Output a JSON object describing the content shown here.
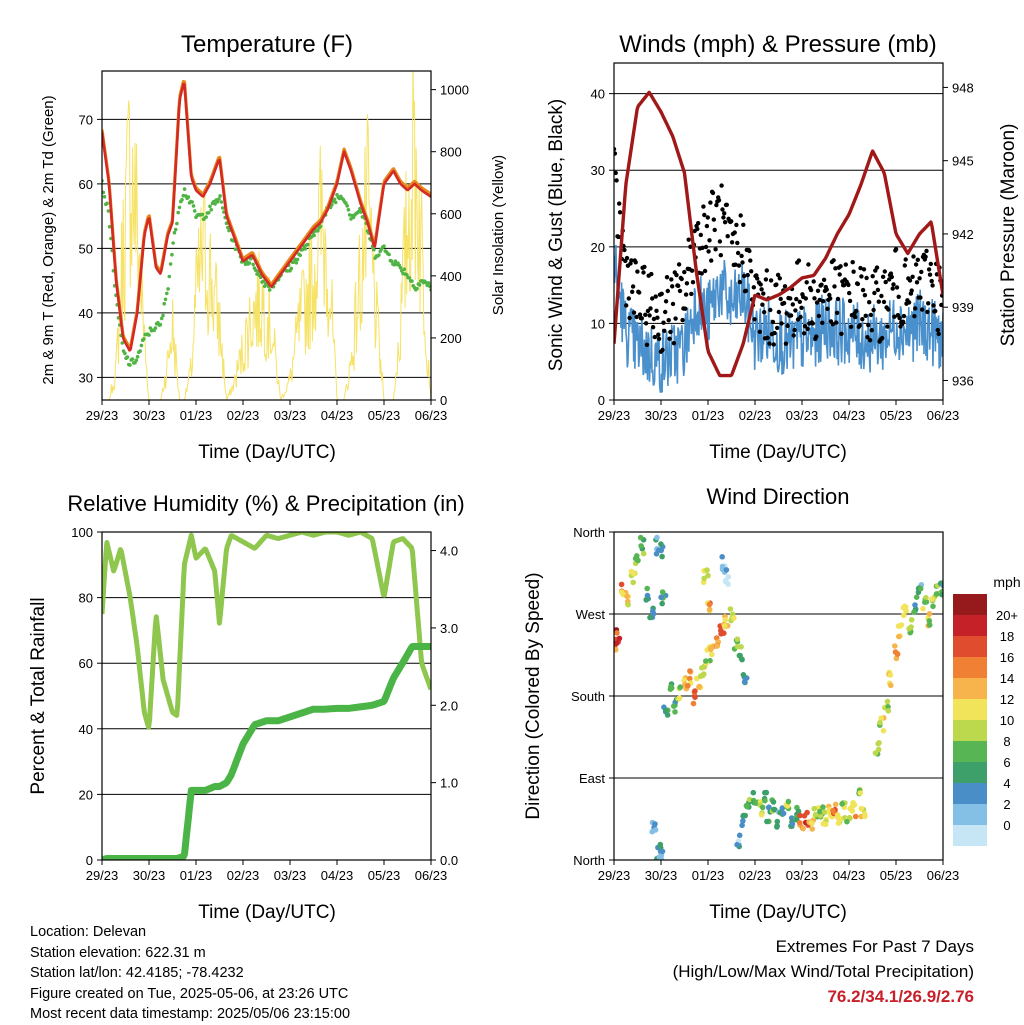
{
  "colors": {
    "temp2m": "#e8881c",
    "temp9m": "#d42a26",
    "dewpoint": "#4fb444",
    "solar": "#f6e264",
    "wind": "#4a90cc",
    "gust": "#000000",
    "pressure": "#a01818",
    "rh": "#8ec64e",
    "precip": "#4bb446",
    "extremes": "#c8202a"
  },
  "time_ticks": [
    "29/23",
    "30/23",
    "01/23",
    "02/23",
    "03/23",
    "04/23",
    "05/23",
    "06/23"
  ],
  "panels": {
    "temperature": {
      "title": "Temperature (F)",
      "xlabel": "Time (Day/UTC)",
      "ylabel_left": "2m & 9m T (Red, Orange) & 2m Td (Green)",
      "ylabel_right": "Solar Insolation (Yellow)",
      "left_ticks": [
        "30",
        "40",
        "50",
        "60",
        "70"
      ],
      "right_ticks": [
        "0",
        "200",
        "400",
        "600",
        "800",
        "1000"
      ]
    },
    "winds": {
      "title": "Winds (mph) & Pressure (mb)",
      "xlabel": "Time (Day/UTC)",
      "ylabel_left": "Sonic Wind & Gust (Blue, Black)",
      "ylabel_right": "Station Pressure (Maroon)",
      "left_ticks": [
        "0",
        "10",
        "20",
        "30",
        "40"
      ],
      "right_ticks": [
        "936",
        "939",
        "942",
        "945",
        "948"
      ]
    },
    "humidity": {
      "title": "Relative Humidity (%) & Precipitation (in)",
      "xlabel": "Time (Day/UTC)",
      "ylabel_left": "Percent & Total Rainfall",
      "left_ticks": [
        "0",
        "20",
        "40",
        "60",
        "80",
        "100"
      ],
      "right_ticks": [
        "0.0",
        "1.0",
        "2.0",
        "3.0",
        "4.0"
      ]
    },
    "direction": {
      "title": "Wind Direction",
      "xlabel": "Time (Day/UTC)",
      "ylabel_left": "Direction (Colored By Speed)",
      "dir_ticks": [
        "North",
        "East",
        "South",
        "West",
        "North"
      ],
      "colorbar_title": "mph",
      "colorbar_labels": [
        "0",
        "2",
        "4",
        "6",
        "8",
        "10",
        "12",
        "14",
        "16",
        "18",
        "20+"
      ],
      "colorbar_colors": [
        "#c6e6f6",
        "#84bfe6",
        "#4a8ec8",
        "#3d9f6a",
        "#58b554",
        "#bcd84c",
        "#f1e45a",
        "#f7b44c",
        "#f08034",
        "#e04c2e",
        "#c42228",
        "#961a1c"
      ]
    }
  },
  "info": {
    "location": "Location: Delevan",
    "elevation": "Station elevation: 622.31 m",
    "latlon": "Station lat/lon: 42.4185; -78.4232",
    "created": "Figure created on Tue, 2025-05-06, at 23:26 UTC",
    "latest": "Most recent data timestamp: 2025/05/06 23:15:00"
  },
  "extremes": {
    "line1": "Extremes For Past 7 Days",
    "line2": "(High/Low/Max Wind/Total Precipitation)",
    "values": "76.2/34.1/26.9/2.76"
  },
  "chart_data": [
    {
      "type": "line",
      "title": "Temperature (F)",
      "xlabel": "Time (Day/UTC)",
      "ylabel": "2m & 9m T (Red, Orange) & 2m Td (Green)",
      "y2label": "Solar Insolation (Yellow)",
      "x": [
        0,
        0.15,
        0.3,
        0.45,
        0.6,
        0.75,
        0.9,
        1.0,
        1.15,
        1.25,
        1.4,
        1.5,
        1.65,
        1.75,
        1.9,
        2.0,
        2.15,
        2.3,
        2.5,
        2.65,
        2.8,
        3.0,
        3.2,
        3.4,
        3.6,
        3.8,
        4.0,
        4.2,
        4.5,
        4.65,
        4.8,
        5.0,
        5.15,
        5.3,
        5.5,
        5.65,
        5.8,
        6.0,
        6.2,
        6.35,
        6.5,
        6.65,
        6.8,
        7.0
      ],
      "x_ticks": [
        "29/23",
        "30/23",
        "01/23",
        "02/23",
        "03/23",
        "04/23",
        "05/23",
        "06/23"
      ],
      "ylim": [
        26.5,
        77.5
      ],
      "y2lim": [
        0,
        1060
      ],
      "series": [
        {
          "name": "2m T",
          "axis": "left",
          "values": [
            68,
            60,
            45,
            36,
            34,
            40,
            52,
            55,
            47,
            46,
            52,
            54,
            73,
            76,
            61,
            59,
            58,
            60,
            64,
            55,
            52,
            48,
            49,
            46,
            44,
            46,
            48,
            50,
            53,
            54,
            56,
            60,
            65,
            62,
            57,
            54,
            50,
            60,
            62,
            60,
            59,
            60,
            59,
            58
          ]
        },
        {
          "name": "9m T",
          "axis": "left",
          "values": [
            68,
            60,
            45,
            36,
            34,
            40,
            52,
            55,
            47,
            46,
            52,
            54,
            73,
            76,
            61,
            59,
            58,
            60,
            64,
            55,
            52,
            48,
            49,
            46,
            44,
            46,
            48,
            50,
            53,
            54,
            56,
            60,
            65,
            62,
            57,
            54,
            50,
            60,
            62,
            60,
            59,
            60,
            59,
            58
          ]
        },
        {
          "name": "2m Td",
          "axis": "left",
          "values": [
            60,
            55,
            42,
            34,
            32,
            33,
            36,
            37,
            38,
            38,
            44,
            50,
            57,
            59,
            57,
            55,
            55,
            56,
            58,
            54,
            51,
            48,
            48,
            45,
            44,
            46,
            47,
            49,
            52,
            54,
            56,
            58,
            58,
            55,
            56,
            53,
            49,
            50,
            48,
            47,
            46,
            44,
            45,
            44
          ]
        },
        {
          "name": "Solar Insolation",
          "axis": "right",
          "values": [
            0,
            0,
            120,
            600,
            950,
            700,
            250,
            0,
            0,
            0,
            150,
            300,
            0,
            0,
            120,
            400,
            600,
            500,
            300,
            0,
            60,
            200,
            350,
            400,
            300,
            0,
            80,
            300,
            500,
            700,
            600,
            0,
            0,
            150,
            500,
            750,
            400,
            0,
            0,
            300,
            700,
            1000,
            600,
            0
          ]
        }
      ]
    },
    {
      "type": "line",
      "title": "Winds (mph) & Pressure (mb)",
      "xlabel": "Time (Day/UTC)",
      "ylabel": "Sonic Wind & Gust (Blue, Black)",
      "y2label": "Station Pressure (Maroon)",
      "x": [
        0,
        0.25,
        0.5,
        0.75,
        1.0,
        1.25,
        1.5,
        1.75,
        2.0,
        2.25,
        2.5,
        2.75,
        3.0,
        3.25,
        3.5,
        3.75,
        4.0,
        4.25,
        4.5,
        4.75,
        5.0,
        5.25,
        5.5,
        5.75,
        6.0,
        6.25,
        6.5,
        6.75,
        7.0
      ],
      "x_ticks": [
        "29/23",
        "30/23",
        "01/23",
        "02/23",
        "03/23",
        "04/23",
        "05/23",
        "06/23"
      ],
      "ylim": [
        0,
        44
      ],
      "y2lim": [
        935.2,
        949
      ],
      "series": [
        {
          "name": "Sonic Wind",
          "axis": "left",
          "values": [
            18,
            9,
            7,
            6,
            5,
            6,
            7,
            13,
            11,
            15,
            12,
            14,
            8,
            9,
            8,
            7,
            8,
            8,
            10,
            9,
            9,
            8,
            8,
            8,
            10,
            9,
            10,
            9,
            8
          ]
        },
        {
          "name": "Gust",
          "axis": "left",
          "values": [
            28,
            17,
            13,
            12,
            11,
            12,
            14,
            21,
            22,
            24,
            19,
            20,
            13,
            12,
            12,
            12,
            14,
            12,
            14,
            13,
            14,
            13,
            12,
            13,
            15,
            13,
            15,
            16,
            12
          ]
        },
        {
          "name": "Station Pressure",
          "axis": "right",
          "values": [
            937.5,
            944,
            947.2,
            947.8,
            947,
            946,
            944.5,
            940.5,
            937.2,
            936.2,
            936.2,
            937.5,
            939.5,
            939.3,
            939.5,
            939.8,
            940.2,
            940.3,
            941,
            942,
            942.8,
            944,
            945.4,
            944.5,
            942,
            941.2,
            942,
            942.5,
            939.5
          ]
        }
      ]
    },
    {
      "type": "line",
      "title": "Relative Humidity (%) & Precipitation (in)",
      "xlabel": "Time (Day/UTC)",
      "ylabel": "Percent & Total Rainfall",
      "x": [
        0,
        0.1,
        0.25,
        0.4,
        0.6,
        0.75,
        0.9,
        1.0,
        1.15,
        1.3,
        1.5,
        1.6,
        1.75,
        1.9,
        2.0,
        2.2,
        2.4,
        2.5,
        2.65,
        2.75,
        3.0,
        3.25,
        3.5,
        3.75,
        4.0,
        4.25,
        4.5,
        4.75,
        5.0,
        5.25,
        5.5,
        5.75,
        6.0,
        6.2,
        6.4,
        6.6,
        6.8,
        7.0
      ],
      "x_ticks": [
        "29/23",
        "30/23",
        "01/23",
        "02/23",
        "03/23",
        "04/23",
        "05/23",
        "06/23"
      ],
      "ylim": [
        0,
        100
      ],
      "y2lim": [
        0,
        4.24
      ],
      "series": [
        {
          "name": "Relative Humidity",
          "axis": "left",
          "values": [
            75,
            97,
            88,
            95,
            80,
            65,
            45,
            40,
            75,
            55,
            45,
            44,
            90,
            99,
            92,
            95,
            88,
            72,
            95,
            99,
            97,
            95,
            99,
            98,
            99,
            100,
            99,
            100,
            100,
            99,
            100,
            98,
            80,
            97,
            98,
            95,
            60,
            52
          ]
        },
        {
          "name": "Total Rainfall",
          "axis": "right",
          "values": [
            0,
            0.02,
            0.02,
            0.02,
            0.02,
            0.02,
            0.02,
            0.02,
            0.02,
            0.02,
            0.02,
            0.02,
            0.05,
            0.9,
            0.9,
            0.9,
            0.95,
            0.95,
            1.0,
            1.1,
            1.5,
            1.75,
            1.8,
            1.8,
            1.85,
            1.9,
            1.95,
            1.95,
            1.96,
            1.96,
            1.98,
            2.0,
            2.05,
            2.35,
            2.55,
            2.76,
            2.76,
            2.76
          ]
        }
      ]
    },
    {
      "type": "scatter",
      "title": "Wind Direction",
      "xlabel": "Time (Day/UTC)",
      "ylabel": "Direction (Colored By Speed)",
      "x_ticks": [
        "29/23",
        "30/23",
        "01/23",
        "02/23",
        "03/23",
        "04/23",
        "05/23",
        "06/23"
      ],
      "y_ticks": [
        "North",
        "East",
        "South",
        "West",
        "North"
      ],
      "ylim": [
        0,
        360
      ],
      "colorbar": {
        "title": "mph",
        "labels": [
          "0",
          "2",
          "4",
          "6",
          "8",
          "10",
          "12",
          "14",
          "16",
          "18",
          "20+"
        ]
      },
      "series": [
        {
          "name": "Direction",
          "points": [
            [
              0.0,
              235,
              18
            ],
            [
              0.1,
              245,
              20
            ],
            [
              0.2,
              300,
              16
            ],
            [
              0.3,
              285,
              14
            ],
            [
              0.4,
              310,
              12
            ],
            [
              0.5,
              330,
              10
            ],
            [
              0.6,
              345,
              8
            ],
            [
              0.7,
              290,
              6
            ],
            [
              0.8,
              270,
              6
            ],
            [
              0.9,
              345,
              4
            ],
            [
              1.0,
              340,
              6
            ],
            [
              1.05,
              290,
              8
            ],
            [
              0.85,
              40,
              4
            ],
            [
              0.95,
              10,
              6
            ],
            [
              1.0,
              5,
              4
            ],
            [
              1.1,
              160,
              6
            ],
            [
              1.2,
              190,
              8
            ],
            [
              1.3,
              170,
              8
            ],
            [
              1.4,
              185,
              12
            ],
            [
              1.5,
              195,
              14
            ],
            [
              1.6,
              200,
              16
            ],
            [
              1.7,
              180,
              18
            ],
            [
              1.8,
              195,
              14
            ],
            [
              1.9,
              210,
              12
            ],
            [
              2.0,
              225,
              12
            ],
            [
              2.1,
              230,
              14
            ],
            [
              2.2,
              240,
              16
            ],
            [
              2.3,
              250,
              18
            ],
            [
              2.4,
              260,
              14
            ],
            [
              2.5,
              270,
              12
            ],
            [
              2.6,
              240,
              10
            ],
            [
              2.7,
              225,
              8
            ],
            [
              2.8,
              200,
              6
            ],
            [
              1.95,
              310,
              12
            ],
            [
              2.0,
              280,
              16
            ],
            [
              2.35,
              325,
              2
            ],
            [
              2.4,
              310,
              2
            ],
            [
              2.65,
              20,
              4
            ],
            [
              2.75,
              40,
              6
            ],
            [
              2.85,
              60,
              8
            ],
            [
              3.0,
              70,
              8
            ],
            [
              3.1,
              55,
              10
            ],
            [
              3.2,
              65,
              8
            ],
            [
              3.3,
              50,
              6
            ],
            [
              3.4,
              60,
              8
            ],
            [
              3.5,
              45,
              6
            ],
            [
              3.6,
              55,
              8
            ],
            [
              3.7,
              60,
              10
            ],
            [
              3.8,
              40,
              6
            ],
            [
              3.9,
              50,
              8
            ],
            [
              4.0,
              40,
              16
            ],
            [
              4.1,
              45,
              18
            ],
            [
              4.2,
              40,
              14
            ],
            [
              4.3,
              50,
              12
            ],
            [
              4.4,
              55,
              10
            ],
            [
              4.5,
              45,
              12
            ],
            [
              4.6,
              50,
              14
            ],
            [
              4.7,
              55,
              16
            ],
            [
              4.8,
              45,
              12
            ],
            [
              4.9,
              55,
              10
            ],
            [
              5.0,
              50,
              12
            ],
            [
              5.1,
              55,
              14
            ],
            [
              5.2,
              70,
              12
            ],
            [
              5.3,
              55,
              14
            ],
            [
              5.6,
              120,
              10
            ],
            [
              5.7,
              150,
              12
            ],
            [
              5.8,
              170,
              12
            ],
            [
              5.9,
              200,
              14
            ],
            [
              6.0,
              230,
              16
            ],
            [
              6.1,
              250,
              14
            ],
            [
              6.2,
              270,
              12
            ],
            [
              6.3,
              255,
              10
            ],
            [
              6.4,
              280,
              8
            ],
            [
              6.5,
              300,
              6
            ],
            [
              6.6,
              280,
              10
            ],
            [
              6.7,
              265,
              12
            ],
            [
              6.8,
              280,
              10
            ],
            [
              6.9,
              295,
              8
            ],
            [
              7.0,
              300,
              8
            ]
          ]
        }
      ]
    }
  ]
}
